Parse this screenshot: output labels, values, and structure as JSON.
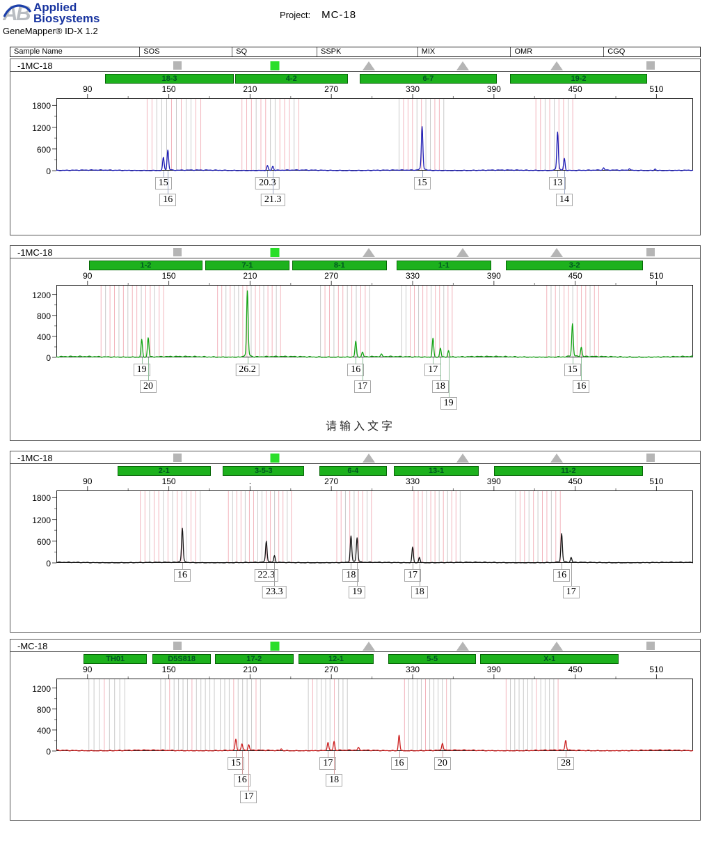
{
  "header": {
    "logo_line1": "Applied",
    "logo_line2": "Biosystems",
    "app_version": "GeneMapper® ID-X  1.2",
    "project_label": "Project:",
    "project_value": "MC-18"
  },
  "table_header": {
    "columns": [
      {
        "label": "Sample Name",
        "pct": 0
      },
      {
        "label": "SOS",
        "pct": 18.7
      },
      {
        "label": "SQ",
        "pct": 32.1
      },
      {
        "label": "SSPK",
        "pct": 44.4
      },
      {
        "label": "MIX",
        "pct": 59.0
      },
      {
        "label": "OMR",
        "pct": 72.5
      },
      {
        "label": "CGQ",
        "pct": 86.0
      }
    ]
  },
  "flag_columns_pct": [
    24.2,
    38.3,
    52.0,
    65.6,
    79.2,
    92.8
  ],
  "watermark": {
    "text": "请输入文字",
    "panel": 1
  },
  "colors": {
    "bin_pink": "#f2b4bc",
    "bin_gray": "#c9c9c9",
    "marker_green": "#1db11d",
    "marker_border": "#066606",
    "flag_gray": "#b5b5b5",
    "flag_green": "#2ade2a"
  },
  "axis": {
    "bp_min": 67,
    "bp_max": 537,
    "x_major_ticks": [
      90,
      150,
      210,
      270,
      330,
      390,
      450,
      510
    ]
  },
  "chart_data": [
    {
      "type": "line",
      "title": "electropherogram dye 1 (blue)",
      "sample_name": "-1MC-18",
      "trace_color": "#1b1bb4",
      "connector_color": "#9aa6c4",
      "status_flags": [
        {
          "column": "SOS",
          "icon": "square",
          "color": "gray"
        },
        {
          "column": "SQ",
          "icon": "square",
          "color": "green"
        },
        {
          "column": "SSPK",
          "icon": "triangle",
          "color": "gray"
        },
        {
          "column": "MIX",
          "icon": "triangle",
          "color": "gray"
        },
        {
          "column": "OMR",
          "icon": "triangle",
          "color": "gray"
        },
        {
          "column": "CGQ",
          "icon": "square",
          "color": "gray"
        }
      ],
      "markers": [
        {
          "label": "18-3",
          "from": 103,
          "to": 198
        },
        {
          "label": "4-2",
          "from": 199,
          "to": 282
        },
        {
          "label": "6-7",
          "from": 291,
          "to": 392
        },
        {
          "label": "19-2",
          "from": 402,
          "to": 503
        }
      ],
      "x_tick_labels": [
        "90",
        "150",
        "210",
        "270",
        "330",
        "390",
        "450",
        "510"
      ],
      "y_ticks": [
        0,
        600,
        1200,
        1800
      ],
      "y_max": 2000,
      "peaks": [
        {
          "bp": 146.0,
          "rfu": 350,
          "allele": "15",
          "row": 0
        },
        {
          "bp": 149.3,
          "rfu": 540,
          "allele": "16",
          "row": 1
        },
        {
          "bp": 222.8,
          "rfu": 130,
          "allele": "20.3",
          "row": 0
        },
        {
          "bp": 226.8,
          "rfu": 115,
          "allele": "21.3",
          "row": 1
        },
        {
          "bp": 337.0,
          "rfu": 1150,
          "allele": "15",
          "row": 0
        },
        {
          "bp": 437.0,
          "rfu": 1020,
          "allele": "13",
          "row": 0
        },
        {
          "bp": 442.0,
          "rfu": 330,
          "allele": "14",
          "row": 1
        }
      ],
      "minor_peaks": [
        {
          "bp": 471,
          "rfu": 60
        },
        {
          "bp": 490,
          "rfu": 50
        },
        {
          "bp": 509,
          "rfu": 45
        }
      ],
      "bins": [
        {
          "from": 134,
          "to": 177,
          "step": 3.6,
          "pattern": [
            "pink",
            "pink",
            "gray",
            "gray",
            "gray",
            "pink",
            "gray",
            "pink",
            "gray",
            "gray",
            "pink",
            "pink"
          ]
        },
        {
          "from": 204,
          "to": 246,
          "step": 3.5,
          "pattern": [
            "pink",
            "pink",
            "pink",
            "gray",
            "pink",
            "pink",
            "gray",
            "gray",
            "pink",
            "pink",
            "pink",
            "gray"
          ]
        },
        {
          "from": 320,
          "to": 356,
          "step": 3.3,
          "pattern": [
            "gray",
            "pink",
            "pink",
            "pink",
            "gray",
            "pink",
            "gray",
            "gray",
            "pink",
            "pink",
            "gray"
          ]
        },
        {
          "from": 421,
          "to": 450,
          "step": 3.4,
          "pattern": [
            "pink",
            "pink",
            "gray",
            "pink",
            "gray",
            "pink",
            "pink",
            "gray",
            "pink"
          ]
        }
      ]
    },
    {
      "type": "line",
      "title": "electropherogram dye 2 (green)",
      "sample_name": "-1MC-18",
      "trace_color": "#13a313",
      "connector_color": "#8fbf9a",
      "status_flags": [
        {
          "column": "SOS",
          "icon": "square",
          "color": "gray"
        },
        {
          "column": "SQ",
          "icon": "square",
          "color": "green"
        },
        {
          "column": "SSPK",
          "icon": "triangle",
          "color": "gray"
        },
        {
          "column": "MIX",
          "icon": "triangle",
          "color": "gray"
        },
        {
          "column": "OMR",
          "icon": "triangle",
          "color": "gray"
        },
        {
          "column": "CGQ",
          "icon": "square",
          "color": "gray"
        }
      ],
      "markers": [
        {
          "label": "1-2",
          "from": 91,
          "to": 175
        },
        {
          "label": "7-1",
          "from": 177,
          "to": 239
        },
        {
          "label": "8-1",
          "from": 241,
          "to": 311
        },
        {
          "label": "1-1",
          "from": 318,
          "to": 388
        },
        {
          "label": "3-2",
          "from": 399,
          "to": 500
        }
      ],
      "x_tick_labels": [
        "90",
        "150",
        "210",
        "270",
        "330",
        "390",
        "450",
        "510"
      ],
      "y_ticks": [
        0,
        400,
        800,
        1200
      ],
      "y_max": 1380,
      "peaks": [
        {
          "bp": 130.0,
          "rfu": 330,
          "allele": "19",
          "row": 0
        },
        {
          "bp": 134.8,
          "rfu": 370,
          "allele": "20",
          "row": 1
        },
        {
          "bp": 208.0,
          "rfu": 1200,
          "allele": "26.2",
          "row": 0
        },
        {
          "bp": 288.0,
          "rfu": 300,
          "allele": "16",
          "row": 0
        },
        {
          "bp": 293.0,
          "rfu": 85,
          "allele": "17",
          "row": 1
        },
        {
          "bp": 345.0,
          "rfu": 360,
          "allele": "17",
          "row": 0
        },
        {
          "bp": 350.5,
          "rfu": 175,
          "allele": "18",
          "row": 1
        },
        {
          "bp": 356.5,
          "rfu": 125,
          "allele": "19",
          "row": 2
        },
        {
          "bp": 448.0,
          "rfu": 600,
          "allele": "15",
          "row": 0
        },
        {
          "bp": 454.5,
          "rfu": 180,
          "allele": "16",
          "row": 1
        }
      ],
      "minor_peaks": [
        {
          "bp": 307,
          "rfu": 40
        }
      ],
      "bins": [
        {
          "from": 100,
          "to": 147,
          "step": 3.3,
          "pattern": [
            "pink",
            "gray",
            "pink",
            "pink",
            "gray",
            "pink",
            "gray",
            "pink",
            "pink",
            "gray",
            "pink",
            "pink",
            "gray",
            "pink"
          ]
        },
        {
          "from": 186,
          "to": 233,
          "step": 3.1,
          "pattern": [
            "pink",
            "pink",
            "gray",
            "pink",
            "gray",
            "gray",
            "pink",
            "pink",
            "gray",
            "pink",
            "pink",
            "gray",
            "pink",
            "pink",
            "gray"
          ]
        },
        {
          "from": 262,
          "to": 300,
          "step": 3.3,
          "pattern": [
            "gray",
            "pink",
            "pink",
            "gray",
            "pink",
            "pink",
            "gray",
            "pink",
            "gray",
            "pink",
            "pink",
            "gray"
          ]
        },
        {
          "from": 322,
          "to": 362,
          "step": 3.1,
          "pattern": [
            "gray",
            "gray",
            "pink",
            "pink",
            "gray",
            "pink",
            "pink",
            "gray",
            "pink",
            "pink",
            "gray",
            "pink",
            "pink"
          ]
        },
        {
          "from": 429,
          "to": 470,
          "step": 3.2,
          "pattern": [
            "pink",
            "gray",
            "pink",
            "gray",
            "pink",
            "pink",
            "gray",
            "pink",
            "pink",
            "pink",
            "gray",
            "pink",
            "pink"
          ]
        }
      ]
    },
    {
      "type": "line",
      "title": "electropherogram dye 3 (black)",
      "sample_name": "-1MC-18",
      "trace_color": "#161616",
      "connector_color": "#a0a0a0",
      "status_flags": [
        {
          "column": "SOS",
          "icon": "square",
          "color": "gray"
        },
        {
          "column": "SQ",
          "icon": "square",
          "color": "green"
        },
        {
          "column": "SSPK",
          "icon": "triangle",
          "color": "gray"
        },
        {
          "column": "MIX",
          "icon": "triangle",
          "color": "gray"
        },
        {
          "column": "OMR",
          "icon": "triangle",
          "color": "gray"
        },
        {
          "column": "CGQ",
          "icon": "square",
          "color": "gray"
        }
      ],
      "markers": [
        {
          "label": "2-1",
          "from": 112,
          "to": 181
        },
        {
          "label": "3-5-3",
          "from": 190,
          "to": 250
        },
        {
          "label": "6-4",
          "from": 261,
          "to": 311
        },
        {
          "label": "13-1",
          "from": 316,
          "to": 379
        },
        {
          "label": "11-2",
          "from": 390,
          "to": 500
        }
      ],
      "x_tick_labels": [
        "90",
        "150",
        ".",
        "270",
        "330",
        "390",
        "450",
        "510"
      ],
      "y_ticks": [
        0,
        600,
        1200,
        1800
      ],
      "y_max": 2000,
      "peaks": [
        {
          "bp": 160.0,
          "rfu": 900,
          "allele": "16",
          "row": 0
        },
        {
          "bp": 222.0,
          "rfu": 560,
          "allele": "22.3",
          "row": 0
        },
        {
          "bp": 228.0,
          "rfu": 180,
          "allele": "23.3",
          "row": 1
        },
        {
          "bp": 284.5,
          "rfu": 690,
          "allele": "18",
          "row": 0
        },
        {
          "bp": 289.0,
          "rfu": 650,
          "allele": "19",
          "row": 1
        },
        {
          "bp": 330.0,
          "rfu": 430,
          "allele": "17",
          "row": 0
        },
        {
          "bp": 335.0,
          "rfu": 150,
          "allele": "18",
          "row": 1
        },
        {
          "bp": 440.0,
          "rfu": 760,
          "allele": "16",
          "row": 0
        },
        {
          "bp": 447.0,
          "rfu": 130,
          "allele": "17",
          "row": 1
        }
      ],
      "minor_peaks": [],
      "bins": [
        {
          "from": 129,
          "to": 176,
          "step": 3.4,
          "pattern": [
            "pink",
            "pink",
            "gray",
            "pink",
            "pink",
            "gray",
            "pink",
            "gray",
            "pink",
            "pink",
            "gray",
            "pink",
            "pink",
            "gray"
          ]
        },
        {
          "from": 194,
          "to": 243,
          "step": 3.1,
          "pattern": [
            "pink",
            "gray",
            "pink",
            "pink",
            "gray",
            "pink",
            "pink",
            "gray",
            "gray",
            "pink",
            "pink",
            "gray",
            "pink",
            "pink",
            "gray",
            "pink"
          ]
        },
        {
          "from": 274,
          "to": 302,
          "step": 3.2,
          "pattern": [
            "pink",
            "pink",
            "gray",
            "pink",
            "gray",
            "pink",
            "pink",
            "gray",
            "pink"
          ]
        },
        {
          "from": 331,
          "to": 366,
          "step": 3.1,
          "pattern": [
            "pink",
            "pink",
            "pink",
            "gray",
            "pink",
            "pink",
            "gray",
            "pink",
            "gray",
            "pink",
            "pink",
            "gray"
          ]
        },
        {
          "from": 406,
          "to": 440,
          "step": 3.3,
          "pattern": [
            "gray",
            "pink",
            "pink",
            "gray",
            "pink",
            "gray",
            "pink",
            "pink",
            "gray",
            "pink",
            "pink"
          ]
        }
      ]
    },
    {
      "type": "line",
      "title": "electropherogram dye 4 (red)",
      "sample_name": "-MC-18",
      "trace_color": "#cc2020",
      "connector_color": "#d09a9a",
      "status_flags": [
        {
          "column": "SOS",
          "icon": "square",
          "color": "gray"
        },
        {
          "column": "SQ",
          "icon": "square",
          "color": "green"
        },
        {
          "column": "SSPK",
          "icon": "triangle",
          "color": "gray"
        },
        {
          "column": "MIX",
          "icon": "triangle",
          "color": "gray"
        },
        {
          "column": "OMR",
          "icon": "triangle",
          "color": "gray"
        },
        {
          "column": "CGQ",
          "icon": "square",
          "color": "gray"
        }
      ],
      "markers": [
        {
          "label": "TH01",
          "from": 87,
          "to": 134
        },
        {
          "label": "D5S818",
          "from": 138,
          "to": 181
        },
        {
          "label": "17-2",
          "from": 184,
          "to": 242
        },
        {
          "label": "12-1",
          "from": 246,
          "to": 301
        },
        {
          "label": "5-5",
          "from": 312,
          "to": 377
        },
        {
          "label": "X-1",
          "from": 380,
          "to": 482
        }
      ],
      "x_tick_labels": [
        "90",
        "150",
        "210",
        "270",
        "330",
        "390",
        "450",
        "510"
      ],
      "y_ticks": [
        0,
        400,
        800,
        1200
      ],
      "y_max": 1380,
      "peaks": [
        {
          "bp": 199.5,
          "rfu": 210,
          "allele": "15",
          "row": 0
        },
        {
          "bp": 204.0,
          "rfu": 120,
          "allele": "16",
          "row": 1
        },
        {
          "bp": 209.0,
          "rfu": 100,
          "allele": "17",
          "row": 2
        },
        {
          "bp": 267.5,
          "rfu": 160,
          "allele": "17",
          "row": 0
        },
        {
          "bp": 272.0,
          "rfu": 170,
          "allele": "18",
          "row": 1
        },
        {
          "bp": 320.0,
          "rfu": 300,
          "allele": "16",
          "row": 0
        },
        {
          "bp": 352.0,
          "rfu": 140,
          "allele": "20",
          "row": 0
        },
        {
          "bp": 443.0,
          "rfu": 190,
          "allele": "28",
          "row": 0
        }
      ],
      "minor_peaks": [
        {
          "bp": 233,
          "rfu": 35
        },
        {
          "bp": 290,
          "rfu": 45
        }
      ],
      "bins": [
        {
          "from": 91,
          "to": 119,
          "step": 3.8,
          "pattern": [
            "gray",
            "gray",
            "gray",
            "pink",
            "gray",
            "gray",
            "gray",
            "gray"
          ]
        },
        {
          "from": 144,
          "to": 186,
          "step": 3.3,
          "pattern": [
            "gray",
            "gray",
            "pink",
            "gray",
            "gray",
            "gray",
            "gray",
            "pink",
            "gray",
            "gray",
            "gray",
            "gray",
            "gray"
          ]
        },
        {
          "from": 188,
          "to": 220,
          "step": 3.3,
          "pattern": [
            "gray",
            "gray",
            "gray",
            "pink",
            "gray",
            "gray",
            "gray",
            "gray",
            "pink",
            "gray"
          ]
        },
        {
          "from": 253,
          "to": 283,
          "step": 3.2,
          "pattern": [
            "gray",
            "pink",
            "gray",
            "gray",
            "gray",
            "gray",
            "pink",
            "gray",
            "gray",
            "gray"
          ]
        },
        {
          "from": 324,
          "to": 360,
          "step": 3.1,
          "pattern": [
            "pink",
            "gray",
            "gray",
            "gray",
            "gray",
            "pink",
            "gray",
            "gray",
            "gray",
            "gray",
            "pink",
            "gray"
          ]
        },
        {
          "from": 399,
          "to": 440,
          "step": 3.2,
          "pattern": [
            "pink",
            "gray",
            "gray",
            "gray",
            "gray",
            "gray",
            "gray",
            "pink",
            "gray",
            "gray",
            "gray",
            "gray",
            "pink"
          ]
        }
      ]
    }
  ]
}
